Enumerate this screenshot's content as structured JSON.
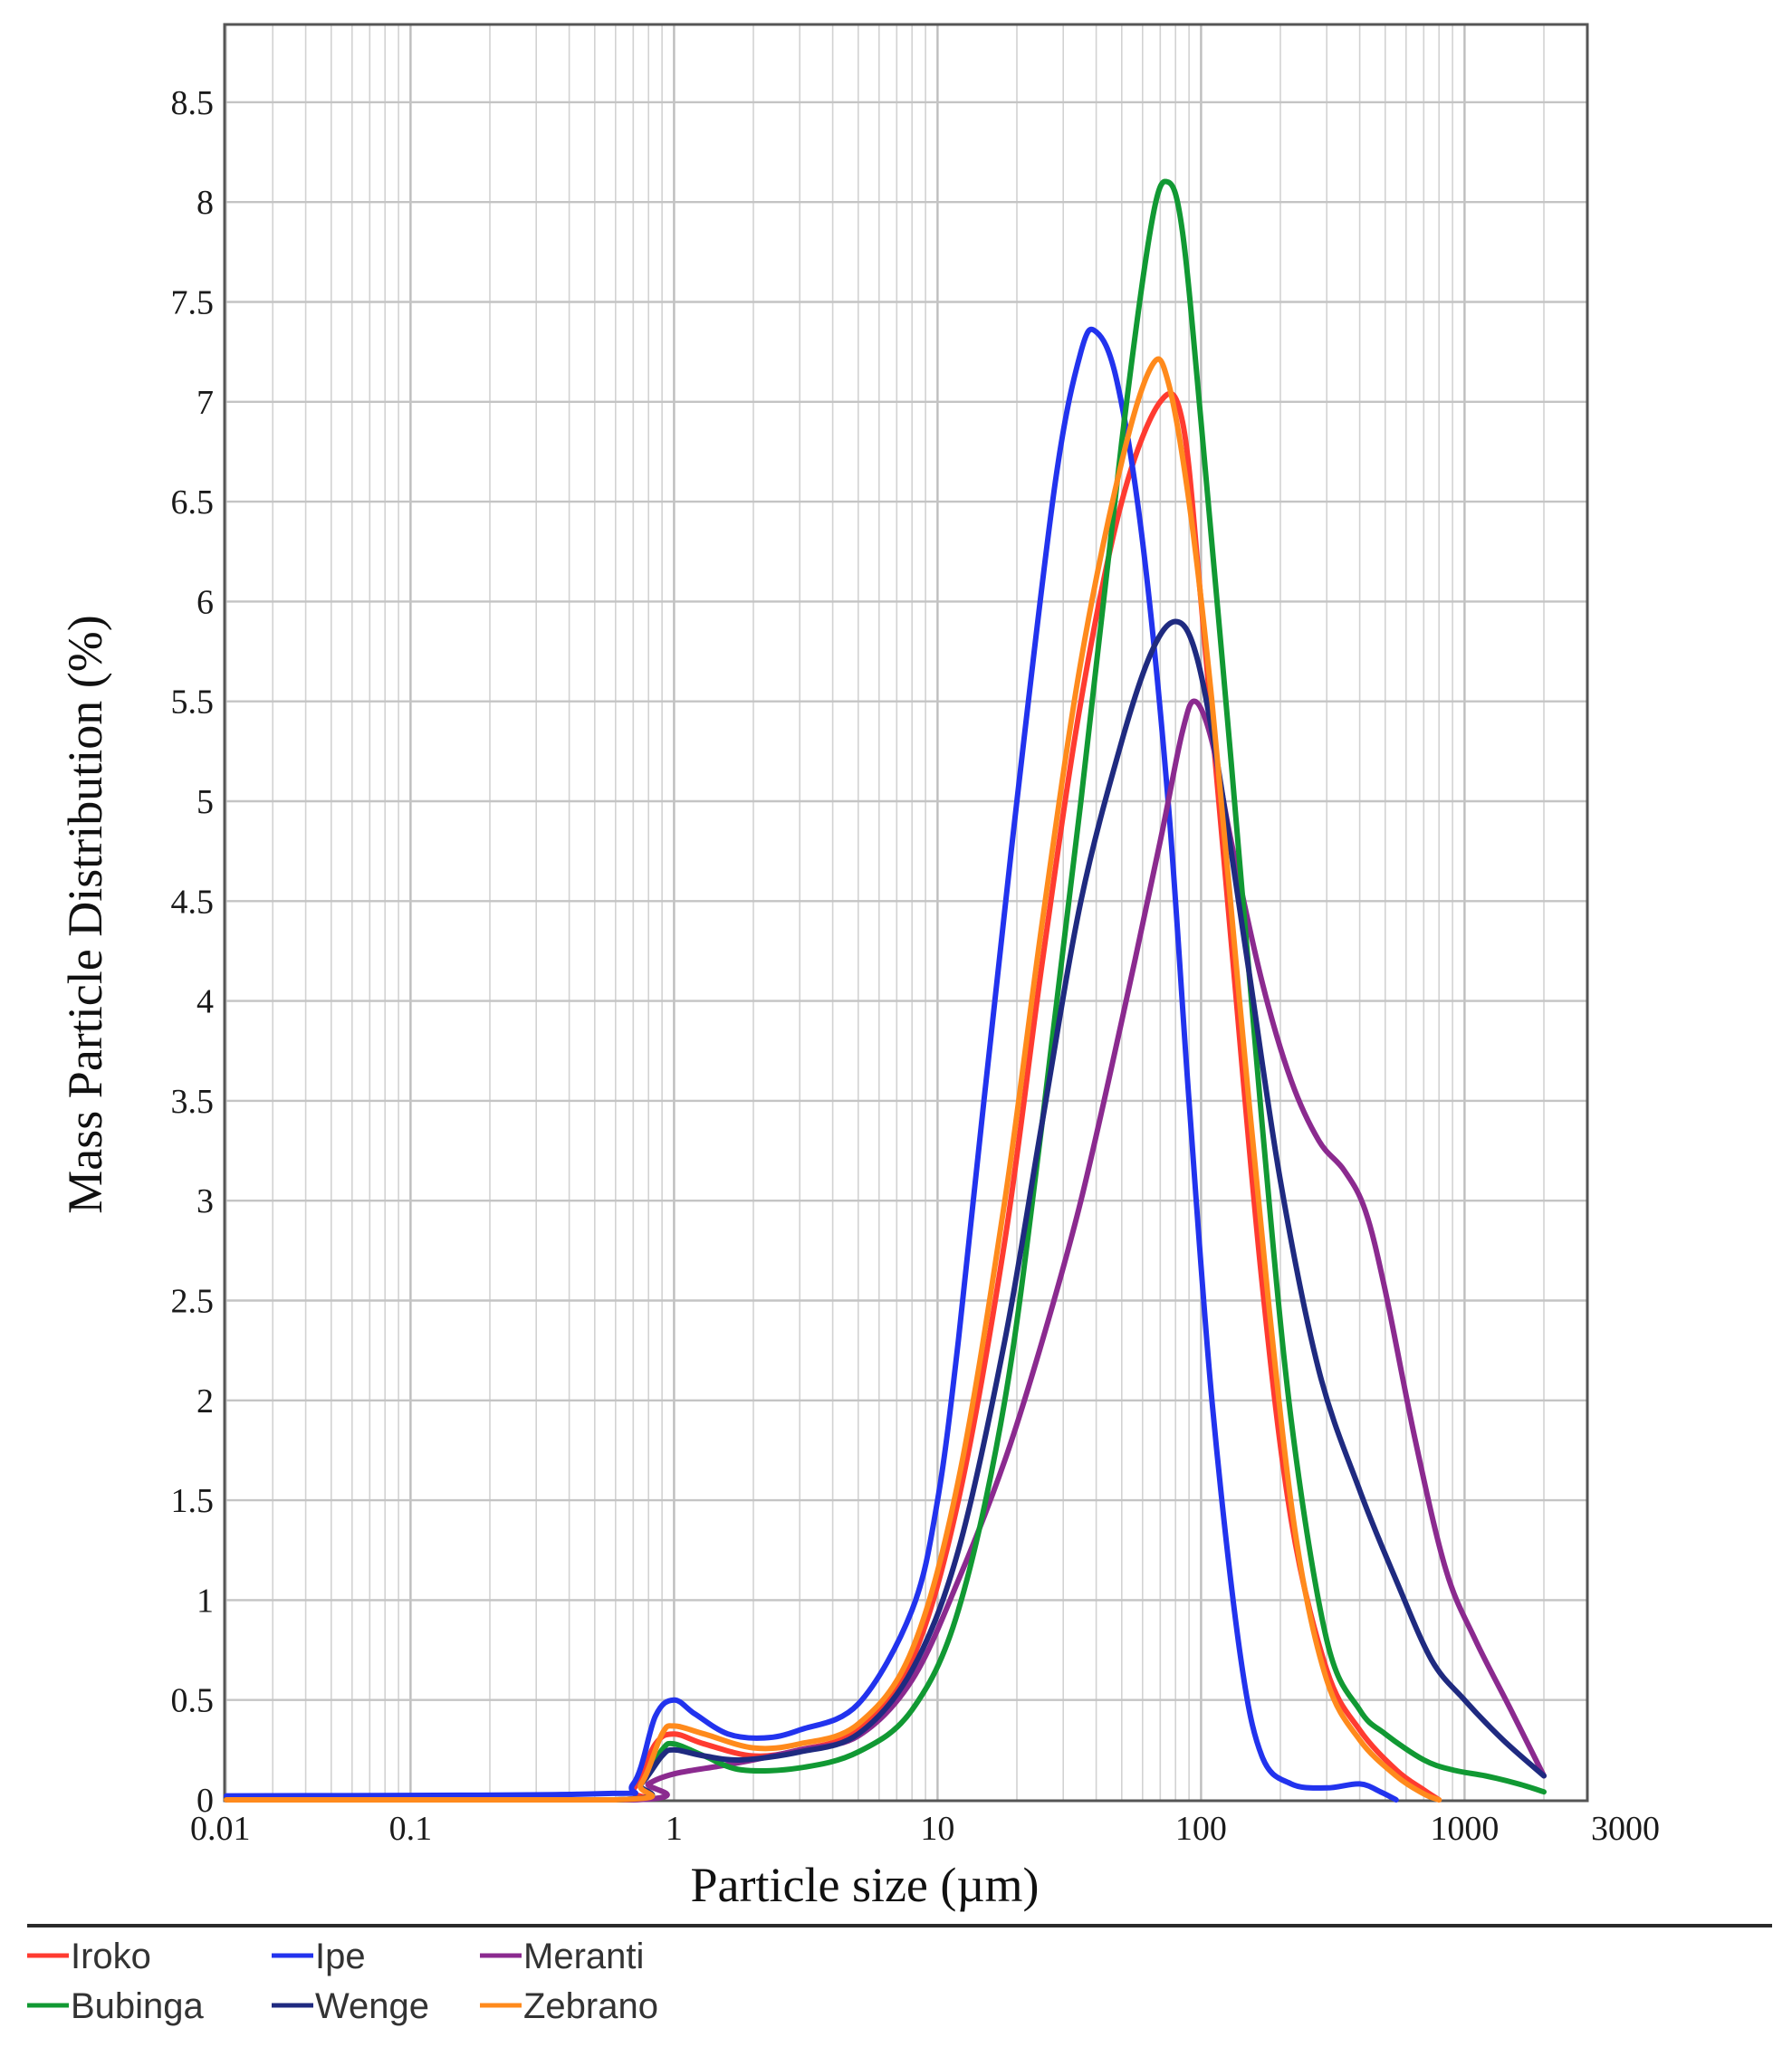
{
  "chart_data": {
    "type": "line",
    "xscale": "log",
    "xlabel": "Particle size (µm)",
    "ylabel": "Mass Particle Distribution (%)",
    "xlim": [
      0.02,
      2000
    ],
    "ylim": [
      0,
      8.5
    ],
    "x_ticks": [
      {
        "value": 0.01,
        "label": "0.01"
      },
      {
        "value": 0.1,
        "label": "0.1"
      },
      {
        "value": 1,
        "label": "1"
      },
      {
        "value": 10,
        "label": "10"
      },
      {
        "value": 100,
        "label": "100"
      },
      {
        "value": 1000,
        "label": "1000"
      },
      {
        "value": 3000,
        "label": "3000"
      }
    ],
    "y_ticks": [
      {
        "value": 0,
        "label": "0"
      },
      {
        "value": 0.5,
        "label": "0.5"
      },
      {
        "value": 1,
        "label": "1"
      },
      {
        "value": 1.5,
        "label": "1.5"
      },
      {
        "value": 2,
        "label": "2"
      },
      {
        "value": 2.5,
        "label": "2.5"
      },
      {
        "value": 3,
        "label": "3"
      },
      {
        "value": 3.5,
        "label": "3.5"
      },
      {
        "value": 4,
        "label": "4"
      },
      {
        "value": 4.5,
        "label": "4.5"
      },
      {
        "value": 5,
        "label": "5"
      },
      {
        "value": 5.5,
        "label": "5.5"
      },
      {
        "value": 6,
        "label": "6"
      },
      {
        "value": 6.5,
        "label": "6.5"
      },
      {
        "value": 7,
        "label": "7"
      },
      {
        "value": 7.5,
        "label": "7.5"
      },
      {
        "value": 8,
        "label": "8"
      },
      {
        "value": 8.5,
        "label": "8.5"
      }
    ],
    "grid": true,
    "legend_position": "bottom",
    "series": [
      {
        "name": "Iroko",
        "color": "#ff3b30",
        "points": [
          [
            0.02,
            0
          ],
          [
            0.6,
            0
          ],
          [
            0.7,
            0.05
          ],
          [
            0.85,
            0.28
          ],
          [
            1.0,
            0.33
          ],
          [
            1.3,
            0.28
          ],
          [
            2,
            0.22
          ],
          [
            3,
            0.25
          ],
          [
            5,
            0.35
          ],
          [
            8,
            0.7
          ],
          [
            12,
            1.5
          ],
          [
            18,
            2.8
          ],
          [
            25,
            4.2
          ],
          [
            35,
            5.5
          ],
          [
            50,
            6.5
          ],
          [
            70,
            7.0
          ],
          [
            85,
            6.9
          ],
          [
            100,
            6.0
          ],
          [
            130,
            4.3
          ],
          [
            170,
            2.6
          ],
          [
            220,
            1.4
          ],
          [
            300,
            0.65
          ],
          [
            400,
            0.35
          ],
          [
            550,
            0.15
          ],
          [
            700,
            0.05
          ],
          [
            800,
            0
          ]
        ]
      },
      {
        "name": "Ipe",
        "color": "#2233ee",
        "points": [
          [
            0.02,
            0.02
          ],
          [
            0.5,
            0.03
          ],
          [
            0.7,
            0.08
          ],
          [
            0.85,
            0.42
          ],
          [
            1.0,
            0.5
          ],
          [
            1.2,
            0.43
          ],
          [
            1.6,
            0.33
          ],
          [
            2.2,
            0.31
          ],
          [
            3,
            0.35
          ],
          [
            5,
            0.48
          ],
          [
            8,
            0.95
          ],
          [
            10,
            1.5
          ],
          [
            12,
            2.3
          ],
          [
            15,
            3.5
          ],
          [
            20,
            5.0
          ],
          [
            28,
            6.6
          ],
          [
            35,
            7.25
          ],
          [
            40,
            7.35
          ],
          [
            48,
            7.1
          ],
          [
            60,
            6.3
          ],
          [
            75,
            5.0
          ],
          [
            90,
            3.5
          ],
          [
            110,
            2.0
          ],
          [
            140,
            0.75
          ],
          [
            170,
            0.22
          ],
          [
            220,
            0.08
          ],
          [
            300,
            0.06
          ],
          [
            400,
            0.08
          ],
          [
            480,
            0.04
          ],
          [
            550,
            0
          ]
        ]
      },
      {
        "name": "Meranti",
        "color": "#8b2a8f",
        "points": [
          [
            0.02,
            0
          ],
          [
            0.7,
            0
          ],
          [
            0.8,
            0.08
          ],
          [
            1.0,
            0.13
          ],
          [
            1.5,
            0.17
          ],
          [
            2,
            0.2
          ],
          [
            3,
            0.25
          ],
          [
            5,
            0.32
          ],
          [
            8,
            0.6
          ],
          [
            12,
            1.1
          ],
          [
            18,
            1.7
          ],
          [
            25,
            2.3
          ],
          [
            35,
            3.0
          ],
          [
            50,
            3.9
          ],
          [
            70,
            4.8
          ],
          [
            85,
            5.35
          ],
          [
            95,
            5.5
          ],
          [
            110,
            5.3
          ],
          [
            130,
            4.8
          ],
          [
            170,
            4.1
          ],
          [
            220,
            3.6
          ],
          [
            280,
            3.3
          ],
          [
            350,
            3.15
          ],
          [
            420,
            2.95
          ],
          [
            500,
            2.55
          ],
          [
            650,
            1.8
          ],
          [
            850,
            1.15
          ],
          [
            1100,
            0.8
          ],
          [
            1500,
            0.45
          ],
          [
            2000,
            0.12
          ]
        ]
      },
      {
        "name": "Bubinga",
        "color": "#119933",
        "points": [
          [
            0.02,
            0
          ],
          [
            0.6,
            0
          ],
          [
            0.75,
            0.08
          ],
          [
            0.9,
            0.25
          ],
          [
            1.0,
            0.28
          ],
          [
            1.3,
            0.22
          ],
          [
            1.8,
            0.15
          ],
          [
            3,
            0.16
          ],
          [
            5,
            0.24
          ],
          [
            8,
            0.45
          ],
          [
            12,
            0.95
          ],
          [
            18,
            2.0
          ],
          [
            25,
            3.4
          ],
          [
            35,
            5.0
          ],
          [
            50,
            6.8
          ],
          [
            65,
            7.9
          ],
          [
            75,
            8.1
          ],
          [
            85,
            7.85
          ],
          [
            100,
            6.9
          ],
          [
            130,
            5.2
          ],
          [
            170,
            3.4
          ],
          [
            220,
            1.9
          ],
          [
            300,
            0.8
          ],
          [
            400,
            0.45
          ],
          [
            500,
            0.33
          ],
          [
            700,
            0.2
          ],
          [
            900,
            0.15
          ],
          [
            1200,
            0.12
          ],
          [
            1600,
            0.08
          ],
          [
            2000,
            0.04
          ]
        ]
      },
      {
        "name": "Wenge",
        "color": "#1f2a80",
        "points": [
          [
            0.02,
            0
          ],
          [
            0.6,
            0
          ],
          [
            0.75,
            0.08
          ],
          [
            0.9,
            0.22
          ],
          [
            1.0,
            0.25
          ],
          [
            1.3,
            0.22
          ],
          [
            1.8,
            0.2
          ],
          [
            3,
            0.24
          ],
          [
            5,
            0.33
          ],
          [
            8,
            0.65
          ],
          [
            12,
            1.25
          ],
          [
            18,
            2.3
          ],
          [
            25,
            3.4
          ],
          [
            35,
            4.5
          ],
          [
            50,
            5.3
          ],
          [
            65,
            5.75
          ],
          [
            80,
            5.9
          ],
          [
            95,
            5.75
          ],
          [
            115,
            5.2
          ],
          [
            150,
            4.2
          ],
          [
            200,
            3.1
          ],
          [
            280,
            2.15
          ],
          [
            400,
            1.55
          ],
          [
            550,
            1.1
          ],
          [
            750,
            0.7
          ],
          [
            1000,
            0.5
          ],
          [
            1400,
            0.3
          ],
          [
            2000,
            0.12
          ]
        ]
      },
      {
        "name": "Zebrano",
        "color": "#ff8a1c",
        "points": [
          [
            0.02,
            0
          ],
          [
            0.6,
            0
          ],
          [
            0.75,
            0.08
          ],
          [
            0.9,
            0.33
          ],
          [
            1.0,
            0.37
          ],
          [
            1.3,
            0.33
          ],
          [
            2,
            0.26
          ],
          [
            3,
            0.28
          ],
          [
            5,
            0.38
          ],
          [
            8,
            0.75
          ],
          [
            12,
            1.6
          ],
          [
            18,
            3.0
          ],
          [
            25,
            4.4
          ],
          [
            35,
            5.7
          ],
          [
            50,
            6.7
          ],
          [
            65,
            7.18
          ],
          [
            75,
            7.1
          ],
          [
            90,
            6.5
          ],
          [
            110,
            5.5
          ],
          [
            140,
            4.0
          ],
          [
            180,
            2.5
          ],
          [
            230,
            1.3
          ],
          [
            300,
            0.6
          ],
          [
            400,
            0.3
          ],
          [
            550,
            0.12
          ],
          [
            700,
            0.03
          ],
          [
            800,
            0
          ]
        ]
      }
    ]
  }
}
